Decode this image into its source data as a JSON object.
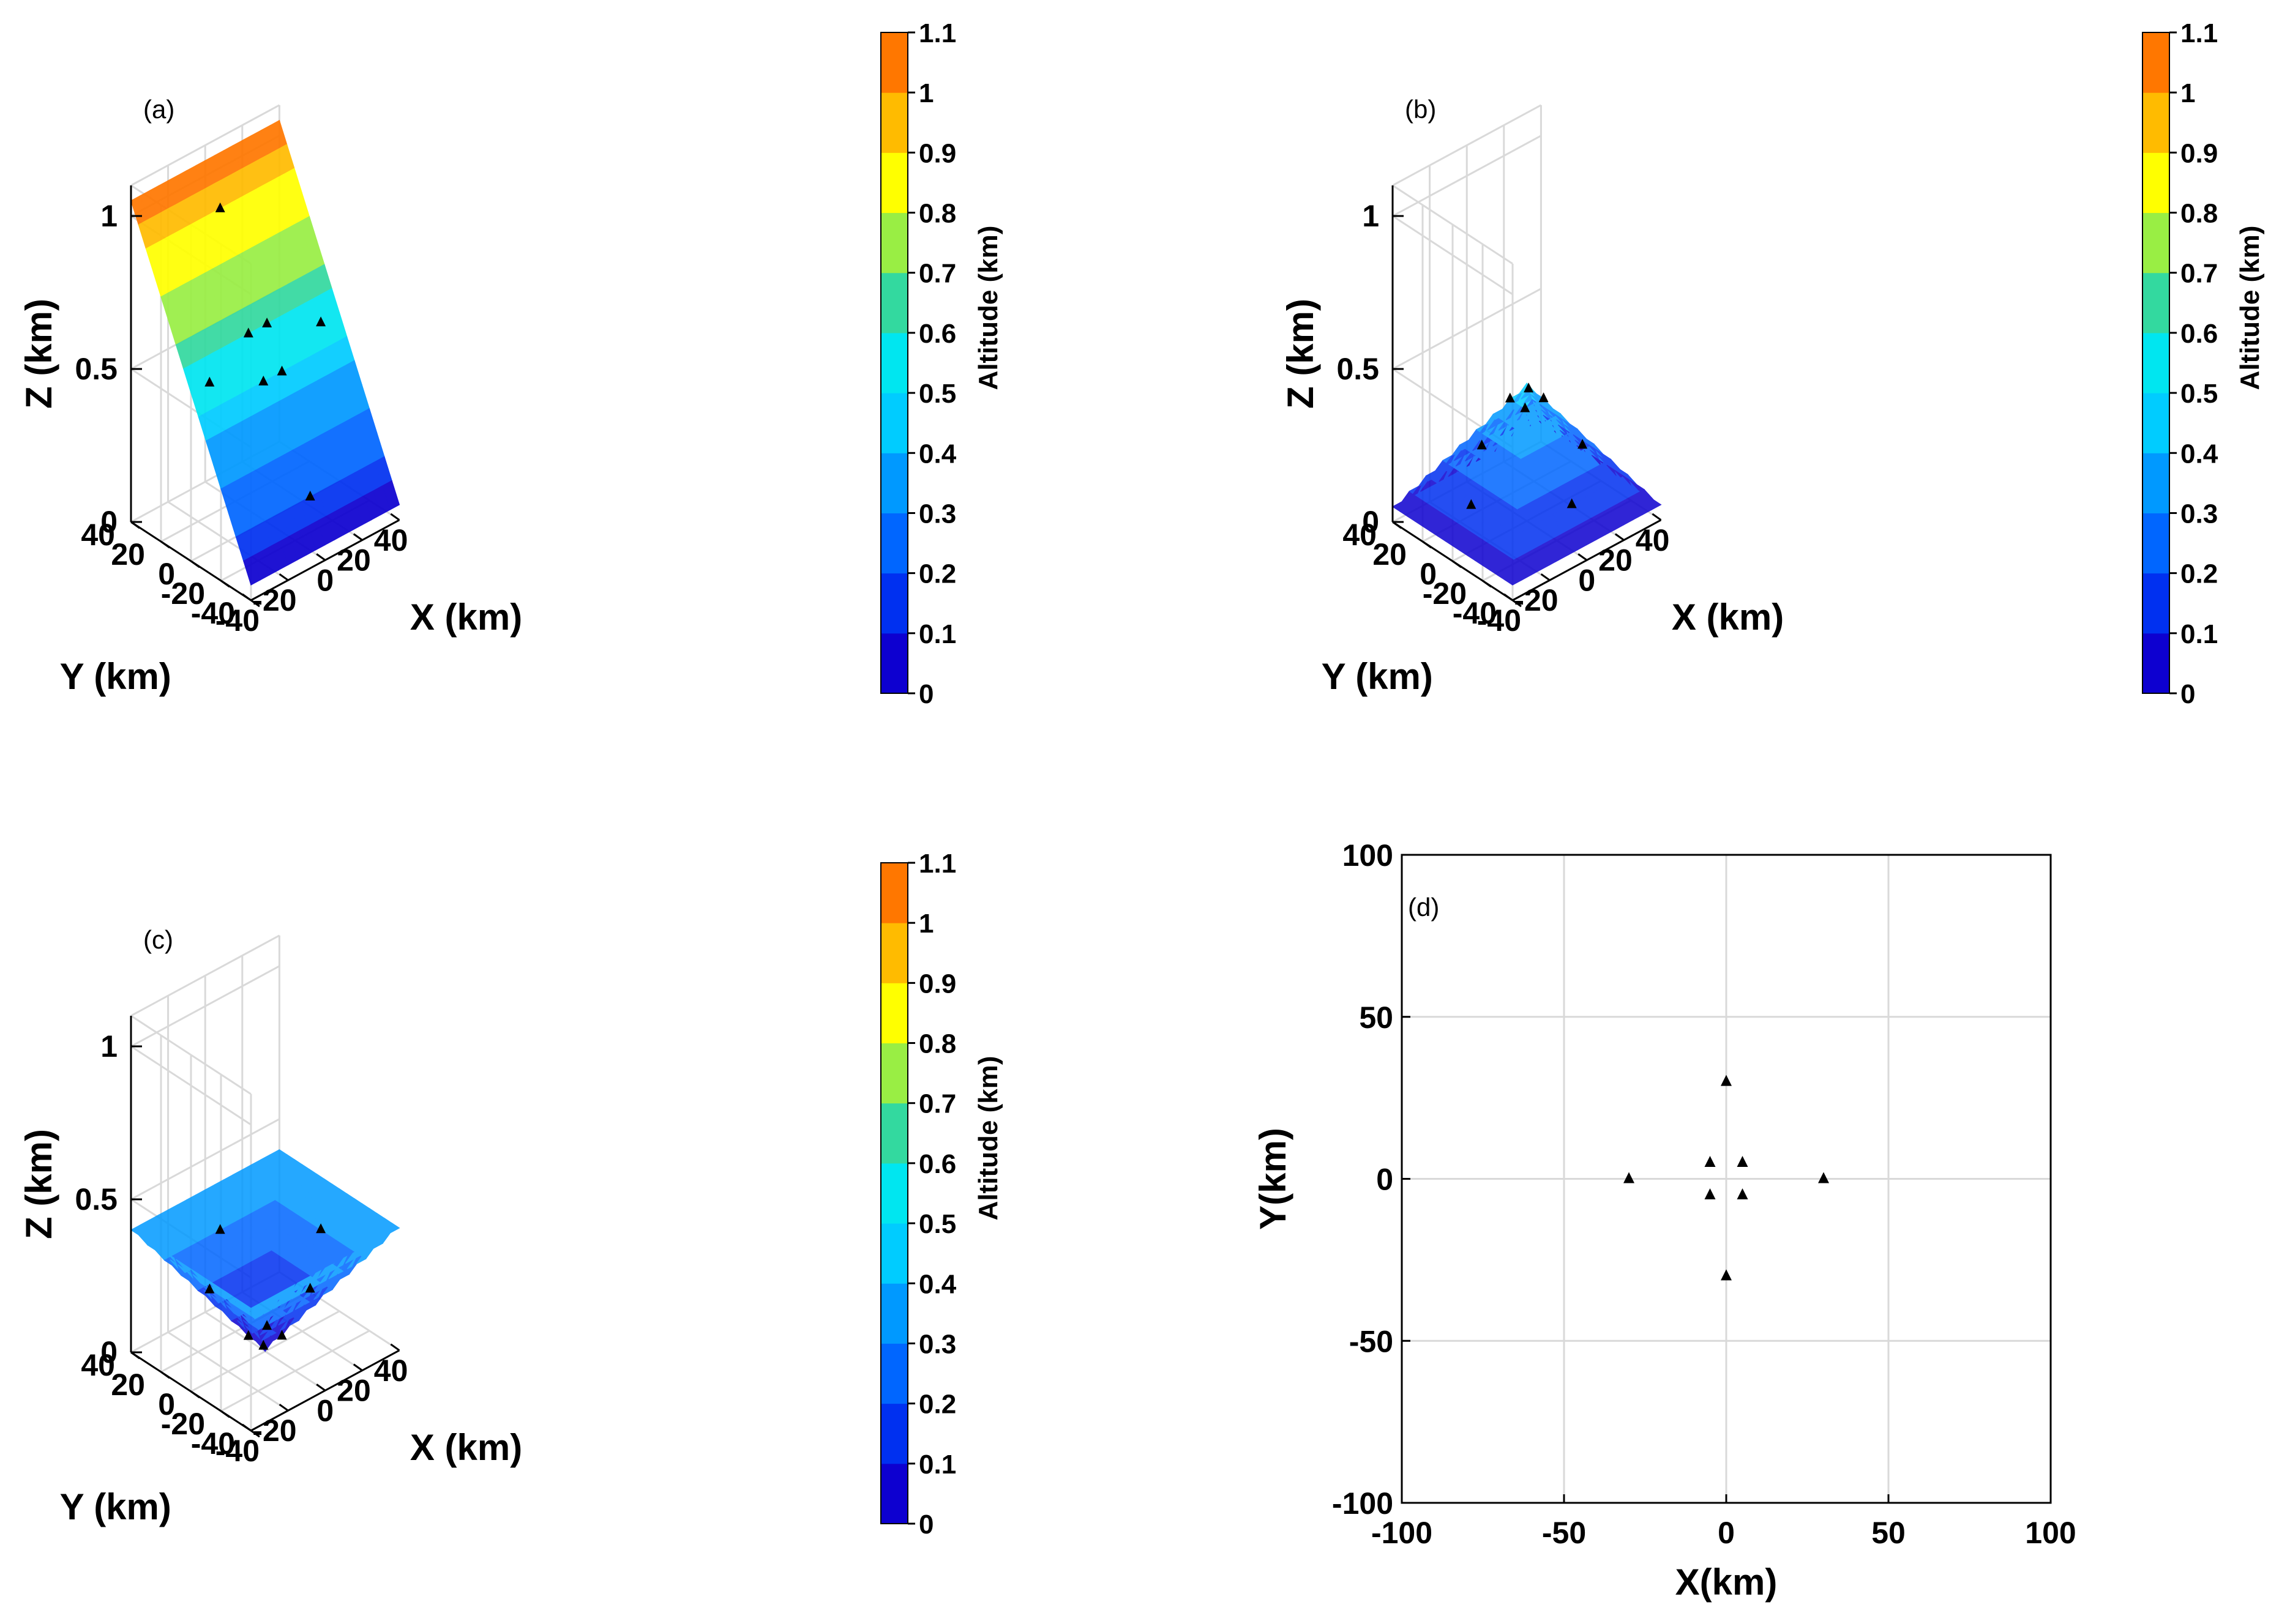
{
  "figure": {
    "panels": [
      "(a)",
      "(b)",
      "(c)",
      "(d)"
    ]
  },
  "chart_data": [
    {
      "panel": "(a)",
      "type": "surface3d",
      "description_label": "(a)",
      "xlabel": "X (km)",
      "ylabel": "Y (km)",
      "zlabel": "Z (km)",
      "xlim": [
        -40,
        40
      ],
      "ylim": [
        -40,
        40
      ],
      "zlim": [
        0,
        1.1
      ],
      "xticks": [
        -40,
        -20,
        0,
        20,
        40
      ],
      "yticks": [
        -40,
        -20,
        0,
        20,
        40
      ],
      "zticks": [
        0,
        0.5,
        1
      ],
      "xtick_labels": [
        "-40",
        "-20",
        "0",
        "20",
        "40"
      ],
      "ytick_labels": [
        "-40",
        "-20",
        "0",
        "20",
        "40"
      ],
      "ztick_labels": [
        "0",
        "0.5",
        "1"
      ],
      "surface": "plane",
      "surface_formula": "z = 0.55 + 0.0125*y",
      "stations": [
        [
          -30,
          0,
          0.55
        ],
        [
          30,
          0,
          0.55
        ],
        [
          0,
          30,
          0.925
        ],
        [
          0,
          -30,
          0.175
        ],
        [
          -5,
          5,
          0.6125
        ],
        [
          5,
          5,
          0.6125
        ],
        [
          -5,
          -5,
          0.4875
        ],
        [
          5,
          -5,
          0.4875
        ]
      ],
      "colorbar": {
        "label": "Altitude (km)",
        "ticks": [
          0,
          0.1,
          0.2,
          0.3,
          0.4,
          0.5,
          0.6,
          0.7,
          0.8,
          0.9,
          1,
          1.1
        ],
        "tick_labels": [
          "0",
          "0.1",
          "0.2",
          "0.3",
          "0.4",
          "0.5",
          "0.6",
          "0.7",
          "0.8",
          "0.9",
          "1",
          "1.1"
        ]
      }
    },
    {
      "panel": "(b)",
      "type": "surface3d",
      "description_label": "(b)",
      "xlabel": "X (km)",
      "ylabel": "Y (km)",
      "zlabel": "Z (km)",
      "xlim": [
        -40,
        40
      ],
      "ylim": [
        -40,
        40
      ],
      "zlim": [
        0,
        1.1
      ],
      "xticks": [
        -40,
        -20,
        0,
        20,
        40
      ],
      "yticks": [
        -40,
        -20,
        0,
        20,
        40
      ],
      "zticks": [
        0,
        0.5,
        1
      ],
      "xtick_labels": [
        "-40",
        "-20",
        "0",
        "20",
        "40"
      ],
      "ytick_labels": [
        "-40",
        "-20",
        "0",
        "20",
        "40"
      ],
      "ztick_labels": [
        "0",
        "0.5",
        "1"
      ],
      "surface": "pyramid",
      "surface_formula": "z = 0.45 - 0.01*max(|x|,|y|)",
      "stations": [
        [
          -30,
          0,
          0.15
        ],
        [
          30,
          0,
          0.15
        ],
        [
          0,
          30,
          0.15
        ],
        [
          0,
          -30,
          0.15
        ],
        [
          -5,
          5,
          0.4
        ],
        [
          5,
          5,
          0.4
        ],
        [
          -5,
          -5,
          0.4
        ],
        [
          5,
          -5,
          0.4
        ]
      ],
      "colorbar": {
        "label": "Altitude (km)",
        "ticks": [
          0,
          0.1,
          0.2,
          0.3,
          0.4,
          0.5,
          0.6,
          0.7,
          0.8,
          0.9,
          1,
          1.1
        ],
        "tick_labels": [
          "0",
          "0.1",
          "0.2",
          "0.3",
          "0.4",
          "0.5",
          "0.6",
          "0.7",
          "0.8",
          "0.9",
          "1",
          "1.1"
        ]
      }
    },
    {
      "panel": "(c)",
      "type": "surface3d",
      "description_label": "(c)",
      "xlabel": "X (km)",
      "ylabel": "Y (km)",
      "zlabel": "Z (km)",
      "xlim": [
        -40,
        40
      ],
      "ylim": [
        -40,
        40
      ],
      "zlim": [
        0,
        1.1
      ],
      "xticks": [
        -40,
        -20,
        0,
        20,
        40
      ],
      "yticks": [
        -40,
        -20,
        0,
        20,
        40
      ],
      "zticks": [
        0,
        0.5,
        1
      ],
      "xtick_labels": [
        "-40",
        "-20",
        "0",
        "20",
        "40"
      ],
      "ytick_labels": [
        "-40",
        "-20",
        "0",
        "20",
        "40"
      ],
      "ztick_labels": [
        "0",
        "0.5",
        "1"
      ],
      "surface": "inverted-pyramid",
      "surface_formula": "z = 0.01*max(|x|,|y|)",
      "stations": [
        [
          -30,
          0,
          0.3
        ],
        [
          30,
          0,
          0.3
        ],
        [
          0,
          30,
          0.3
        ],
        [
          0,
          -30,
          0.3
        ],
        [
          -5,
          5,
          0.05
        ],
        [
          5,
          5,
          0.05
        ],
        [
          -5,
          -5,
          0.05
        ],
        [
          5,
          -5,
          0.05
        ]
      ],
      "colorbar": {
        "label": "Altitude (km)",
        "ticks": [
          0,
          0.1,
          0.2,
          0.3,
          0.4,
          0.5,
          0.6,
          0.7,
          0.8,
          0.9,
          1,
          1.1
        ],
        "tick_labels": [
          "0",
          "0.1",
          "0.2",
          "0.3",
          "0.4",
          "0.5",
          "0.6",
          "0.7",
          "0.8",
          "0.9",
          "1",
          "1.1"
        ]
      }
    },
    {
      "panel": "(d)",
      "type": "scatter",
      "description_label": "(d)",
      "xlabel": "X(km)",
      "ylabel": "Y(km)",
      "xlim": [
        -100,
        100
      ],
      "ylim": [
        -100,
        100
      ],
      "xticks": [
        -100,
        -50,
        0,
        50,
        100
      ],
      "yticks": [
        -100,
        -50,
        0,
        50,
        100
      ],
      "xtick_labels": [
        "-100",
        "-50",
        "0",
        "50",
        "100"
      ],
      "ytick_labels": [
        "-100",
        "-50",
        "0",
        "50",
        "100"
      ],
      "grid": true,
      "points": [
        [
          0,
          30
        ],
        [
          -30,
          0
        ],
        [
          30,
          0
        ],
        [
          0,
          -30
        ],
        [
          -5,
          5
        ],
        [
          5,
          5
        ],
        [
          -5,
          -5
        ],
        [
          5,
          -5
        ]
      ],
      "marker": "triangle"
    }
  ],
  "colormap": [
    "#0d00d0",
    "#0030f0",
    "#0066ff",
    "#0099ff",
    "#00ccff",
    "#00e6f0",
    "#33d99f",
    "#99ee44",
    "#ffff00",
    "#ffbb00",
    "#ff7700",
    "#ff3300"
  ]
}
